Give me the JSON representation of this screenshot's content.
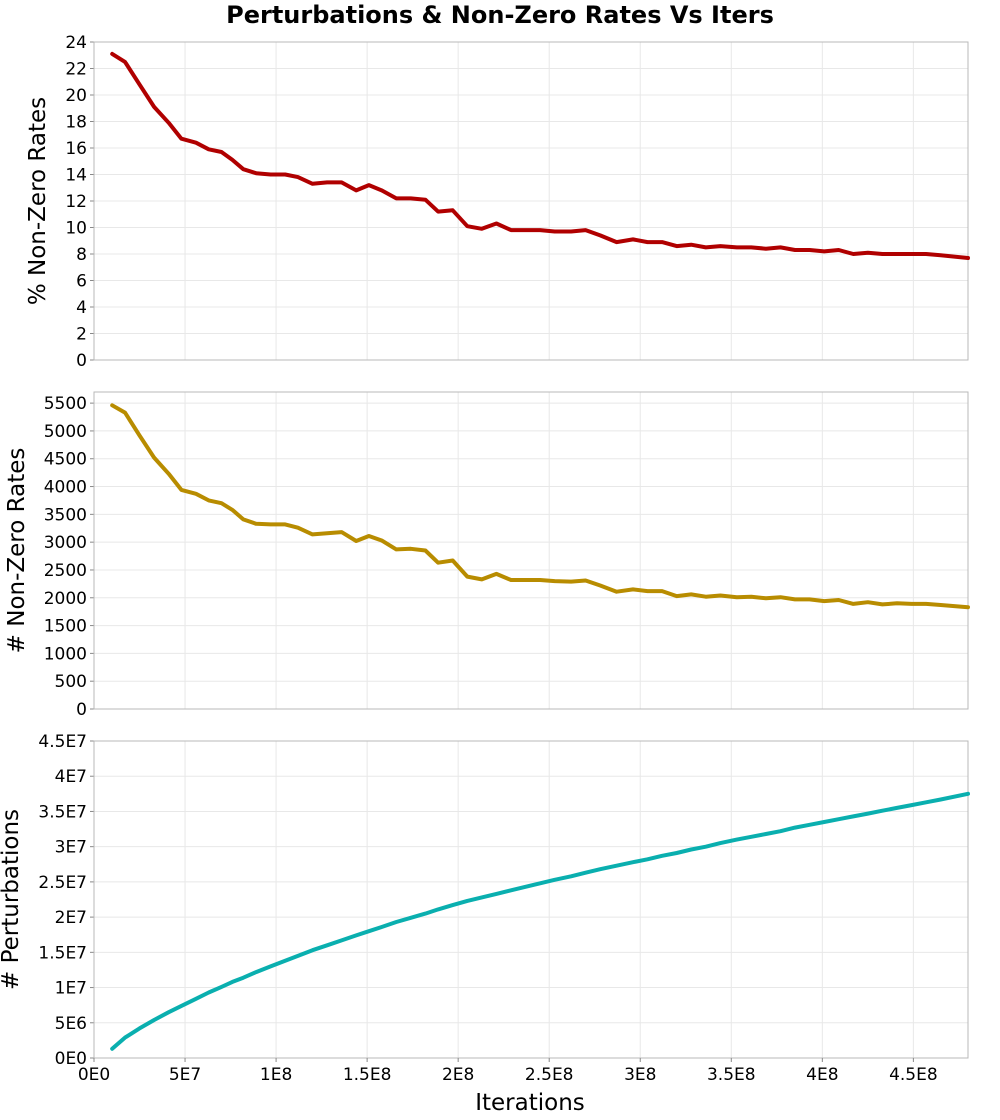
{
  "chart_data": {
    "title": "Perturbations & Non-Zero Rates Vs Iters",
    "shared_x": {
      "label": "Iterations",
      "range": [
        0,
        480000000
      ],
      "tick_values": [
        0,
        50000000,
        100000000,
        150000000,
        200000000,
        250000000,
        300000000,
        350000000,
        400000000,
        450000000
      ],
      "tick_labels": [
        "0E0",
        "5E7",
        "1E8",
        "1.5E8",
        "2E8",
        "2.5E8",
        "3E8",
        "3.5E8",
        "4E8",
        "4.5E8"
      ],
      "x": [
        10000000,
        17000000,
        25000000,
        33000000,
        41000000,
        48000000,
        56000000,
        63000000,
        70000000,
        76000000,
        82000000,
        89000000,
        97000000,
        105000000,
        112000000,
        120000000,
        128000000,
        136000000,
        144000000,
        151000000,
        158000000,
        166000000,
        174000000,
        182000000,
        189000000,
        197000000,
        205000000,
        213000000,
        221000000,
        229000000,
        237000000,
        245000000,
        253000000,
        262000000,
        270000000,
        278000000,
        287000000,
        296000000,
        304000000,
        312000000,
        320000000,
        328000000,
        336000000,
        344000000,
        353000000,
        361000000,
        369000000,
        377000000,
        385000000,
        393000000,
        401000000,
        409000000,
        417000000,
        425000000,
        433000000,
        441000000,
        449000000,
        457000000,
        465000000,
        480000000
      ]
    },
    "grid": true,
    "panels": [
      {
        "type": "line",
        "ylabel": "% Non-Zero Rates",
        "ylim": [
          0,
          24
        ],
        "y_tick_values": [
          0,
          2,
          4,
          6,
          8,
          10,
          12,
          14,
          16,
          18,
          20,
          22,
          24
        ],
        "y_tick_labels": [
          "0",
          "2",
          "4",
          "6",
          "8",
          "10",
          "12",
          "14",
          "16",
          "18",
          "20",
          "22",
          "24"
        ],
        "color": "#b00000",
        "values": [
          23.1,
          22.5,
          20.8,
          19.1,
          17.9,
          16.7,
          16.4,
          15.9,
          15.7,
          15.1,
          14.4,
          14.1,
          14.0,
          14.0,
          13.8,
          13.3,
          13.4,
          13.4,
          12.8,
          13.2,
          12.8,
          12.2,
          12.2,
          12.1,
          11.2,
          11.3,
          10.1,
          9.9,
          10.3,
          9.8,
          9.8,
          9.8,
          9.7,
          9.7,
          9.8,
          9.4,
          8.9,
          9.1,
          8.9,
          8.9,
          8.6,
          8.7,
          8.5,
          8.6,
          8.5,
          8.5,
          8.4,
          8.5,
          8.3,
          8.3,
          8.2,
          8.3,
          8.0,
          8.1,
          8.0,
          8.0,
          8.0,
          8.0,
          7.9,
          7.7
        ]
      },
      {
        "type": "line",
        "ylabel": "# Non-Zero Rates",
        "ylim": [
          0,
          5700
        ],
        "y_tick_values": [
          0,
          500,
          1000,
          1500,
          2000,
          2500,
          3000,
          3500,
          4000,
          4500,
          5000,
          5500
        ],
        "y_tick_labels": [
          "0",
          "500",
          "1000",
          "1500",
          "2000",
          "2500",
          "3000",
          "3500",
          "4000",
          "4500",
          "5000",
          "5500"
        ],
        "color": "#b88c00",
        "values": [
          5460,
          5330,
          4920,
          4520,
          4230,
          3940,
          3870,
          3750,
          3700,
          3580,
          3410,
          3330,
          3320,
          3320,
          3260,
          3140,
          3160,
          3180,
          3020,
          3110,
          3030,
          2870,
          2880,
          2850,
          2630,
          2670,
          2380,
          2330,
          2430,
          2320,
          2320,
          2320,
          2300,
          2290,
          2310,
          2220,
          2110,
          2150,
          2120,
          2120,
          2030,
          2060,
          2020,
          2040,
          2010,
          2020,
          1990,
          2010,
          1970,
          1970,
          1940,
          1960,
          1890,
          1920,
          1880,
          1900,
          1890,
          1890,
          1870,
          1830
        ]
      },
      {
        "type": "line",
        "ylabel": "# Perturbations",
        "ylim": [
          0,
          45000000
        ],
        "y_tick_values": [
          0,
          5000000,
          10000000,
          15000000,
          20000000,
          25000000,
          30000000,
          35000000,
          40000000,
          45000000
        ],
        "y_tick_labels": [
          "0E0",
          "5E6",
          "1E7",
          "1.5E7",
          "2E7",
          "2.5E7",
          "3E7",
          "3.5E7",
          "4E7",
          "4.5E7"
        ],
        "color": "#0aafaf",
        "values": [
          1300000,
          2900000,
          4200000,
          5400000,
          6500000,
          7400000,
          8400000,
          9300000,
          10100000,
          10800000,
          11400000,
          12200000,
          13000000,
          13800000,
          14500000,
          15300000,
          16000000,
          16700000,
          17400000,
          18000000,
          18600000,
          19300000,
          19900000,
          20500000,
          21100000,
          21700000,
          22300000,
          22800000,
          23300000,
          23800000,
          24300000,
          24800000,
          25300000,
          25800000,
          26300000,
          26800000,
          27300000,
          27800000,
          28200000,
          28700000,
          29100000,
          29600000,
          30000000,
          30500000,
          31000000,
          31400000,
          31800000,
          32200000,
          32700000,
          33100000,
          33500000,
          33900000,
          34300000,
          34700000,
          35100000,
          35500000,
          35900000,
          36300000,
          36700000,
          37500000
        ]
      }
    ]
  }
}
